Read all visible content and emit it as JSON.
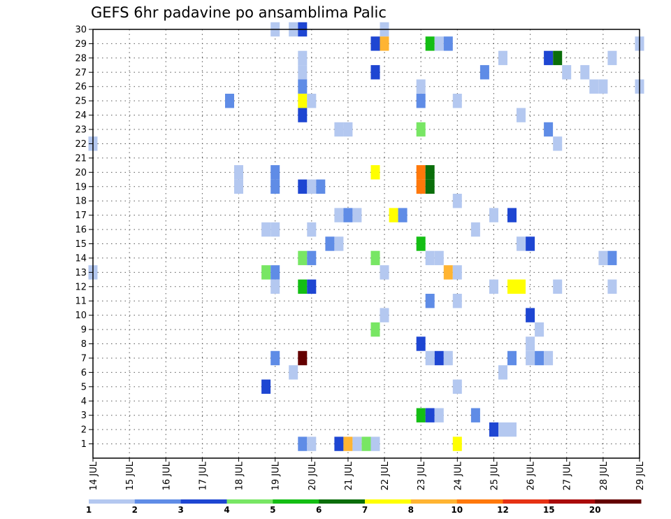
{
  "chart_data": {
    "type": "heatmap",
    "title": "GEFS 6hr padavine po ansamblima Palic",
    "x_tick_labels": [
      "14 JUL",
      "15 JUL",
      "16 JUL",
      "17 JUL",
      "18 JUL",
      "19 JUL",
      "20 JUL",
      "21 JUL",
      "22 JUL",
      "23 JUL",
      "24 JUL",
      "25 JUL",
      "26 JUL",
      "27 JUL",
      "28 JUL",
      "29 JUL"
    ],
    "x_range_days": [
      0,
      15
    ],
    "y_tick_labels": [
      "1",
      "2",
      "3",
      "4",
      "5",
      "6",
      "7",
      "8",
      "9",
      "10",
      "11",
      "12",
      "13",
      "14",
      "15",
      "16",
      "17",
      "18",
      "19",
      "20",
      "21",
      "22",
      "23",
      "24",
      "25",
      "26",
      "27",
      "28",
      "29",
      "30"
    ],
    "y_range": [
      0,
      30
    ],
    "grid": true,
    "grid_style": "dotted",
    "colorbar": {
      "labels": [
        "1",
        "2",
        "3",
        "4",
        "5",
        "6",
        "7",
        "8",
        "10",
        "12",
        "15",
        "20"
      ],
      "colors": [
        "#b4c8f0",
        "#5f8ce6",
        "#1e46d2",
        "#78e664",
        "#14be14",
        "#0a6e0a",
        "#ffff00",
        "#ffb432",
        "#ff780a",
        "#e63214",
        "#aa0a0a",
        "#640000"
      ]
    },
    "cells": [
      {
        "day": 5.0,
        "member": 30,
        "level": 0
      },
      {
        "day": 5.5,
        "member": 30,
        "level": 0
      },
      {
        "day": 5.75,
        "member": 30,
        "level": 2
      },
      {
        "day": 8.0,
        "member": 30,
        "level": 0
      },
      {
        "day": 7.75,
        "member": 29,
        "level": 2
      },
      {
        "day": 8.0,
        "member": 29,
        "level": 7
      },
      {
        "day": 9.25,
        "member": 29,
        "level": 4
      },
      {
        "day": 9.5,
        "member": 29,
        "level": 0
      },
      {
        "day": 9.75,
        "member": 29,
        "level": 1
      },
      {
        "day": 15.0,
        "member": 29,
        "level": 0
      },
      {
        "day": 5.75,
        "member": 28,
        "level": 0
      },
      {
        "day": 11.25,
        "member": 28,
        "level": 0
      },
      {
        "day": 12.5,
        "member": 28,
        "level": 2
      },
      {
        "day": 12.75,
        "member": 28,
        "level": 5
      },
      {
        "day": 14.25,
        "member": 28,
        "level": 0
      },
      {
        "day": 5.75,
        "member": 27,
        "level": 0
      },
      {
        "day": 7.75,
        "member": 27,
        "level": 2
      },
      {
        "day": 10.75,
        "member": 27,
        "level": 1
      },
      {
        "day": 13.0,
        "member": 27,
        "level": 0
      },
      {
        "day": 13.5,
        "member": 27,
        "level": 0
      },
      {
        "day": 5.75,
        "member": 26,
        "level": 1
      },
      {
        "day": 9.0,
        "member": 26,
        "level": 0
      },
      {
        "day": 13.75,
        "member": 26,
        "level": 0
      },
      {
        "day": 14.0,
        "member": 26,
        "level": 0
      },
      {
        "day": 15.0,
        "member": 26,
        "level": 0
      },
      {
        "day": 3.75,
        "member": 25,
        "level": 1
      },
      {
        "day": 5.75,
        "member": 25,
        "level": 6
      },
      {
        "day": 6.0,
        "member": 25,
        "level": 0
      },
      {
        "day": 9.0,
        "member": 25,
        "level": 1
      },
      {
        "day": 10.0,
        "member": 25,
        "level": 0
      },
      {
        "day": 5.75,
        "member": 24,
        "level": 2
      },
      {
        "day": 11.75,
        "member": 24,
        "level": 0
      },
      {
        "day": 6.75,
        "member": 23,
        "level": 0
      },
      {
        "day": 7.0,
        "member": 23,
        "level": 0
      },
      {
        "day": 9.0,
        "member": 23,
        "level": 3
      },
      {
        "day": 12.5,
        "member": 23,
        "level": 1
      },
      {
        "day": 0.0,
        "member": 22,
        "level": 0
      },
      {
        "day": 12.75,
        "member": 22,
        "level": 0
      },
      {
        "day": 4.0,
        "member": 20,
        "level": 0
      },
      {
        "day": 5.0,
        "member": 20,
        "level": 1
      },
      {
        "day": 7.75,
        "member": 20,
        "level": 6
      },
      {
        "day": 9.0,
        "member": 20,
        "level": 8
      },
      {
        "day": 9.25,
        "member": 20,
        "level": 5
      },
      {
        "day": 4.0,
        "member": 19,
        "level": 0
      },
      {
        "day": 5.0,
        "member": 19,
        "level": 1
      },
      {
        "day": 9.0,
        "member": 19,
        "level": 8
      },
      {
        "day": 9.25,
        "member": 19,
        "level": 5
      },
      {
        "day": 5.75,
        "member": 19,
        "level": 2
      },
      {
        "day": 6.0,
        "member": 19,
        "level": 0
      },
      {
        "day": 6.25,
        "member": 19,
        "level": 1
      },
      {
        "day": 10.0,
        "member": 18,
        "level": 0
      },
      {
        "day": 6.75,
        "member": 17,
        "level": 0
      },
      {
        "day": 7.0,
        "member": 17,
        "level": 1
      },
      {
        "day": 7.25,
        "member": 17,
        "level": 0
      },
      {
        "day": 8.25,
        "member": 17,
        "level": 6
      },
      {
        "day": 8.5,
        "member": 17,
        "level": 1
      },
      {
        "day": 11.0,
        "member": 17,
        "level": 0
      },
      {
        "day": 11.5,
        "member": 17,
        "level": 2
      },
      {
        "day": 4.75,
        "member": 16,
        "level": 0
      },
      {
        "day": 5.0,
        "member": 16,
        "level": 0
      },
      {
        "day": 6.0,
        "member": 16,
        "level": 0
      },
      {
        "day": 10.5,
        "member": 16,
        "level": 0
      },
      {
        "day": 6.5,
        "member": 15,
        "level": 1
      },
      {
        "day": 6.75,
        "member": 15,
        "level": 0
      },
      {
        "day": 9.0,
        "member": 15,
        "level": 4
      },
      {
        "day": 11.75,
        "member": 15,
        "level": 0
      },
      {
        "day": 12.0,
        "member": 15,
        "level": 2
      },
      {
        "day": 5.75,
        "member": 14,
        "level": 3
      },
      {
        "day": 6.0,
        "member": 14,
        "level": 1
      },
      {
        "day": 7.75,
        "member": 14,
        "level": 3
      },
      {
        "day": 9.25,
        "member": 14,
        "level": 0
      },
      {
        "day": 9.5,
        "member": 14,
        "level": 0
      },
      {
        "day": 14.0,
        "member": 14,
        "level": 0
      },
      {
        "day": 14.25,
        "member": 14,
        "level": 1
      },
      {
        "day": 0.0,
        "member": 13,
        "level": 0
      },
      {
        "day": 4.75,
        "member": 13,
        "level": 3
      },
      {
        "day": 5.0,
        "member": 13,
        "level": 1
      },
      {
        "day": 8.0,
        "member": 13,
        "level": 0
      },
      {
        "day": 9.75,
        "member": 13,
        "level": 7
      },
      {
        "day": 10.0,
        "member": 13,
        "level": 0
      },
      {
        "day": 5.0,
        "member": 12,
        "level": 0
      },
      {
        "day": 5.75,
        "member": 12,
        "level": 4
      },
      {
        "day": 6.0,
        "member": 12,
        "level": 2
      },
      {
        "day": 11.0,
        "member": 12,
        "level": 0
      },
      {
        "day": 11.5,
        "member": 12,
        "level": 6
      },
      {
        "day": 11.75,
        "member": 12,
        "level": 6
      },
      {
        "day": 12.75,
        "member": 12,
        "level": 0
      },
      {
        "day": 14.25,
        "member": 12,
        "level": 0
      },
      {
        "day": 9.25,
        "member": 11,
        "level": 1
      },
      {
        "day": 10.0,
        "member": 11,
        "level": 0
      },
      {
        "day": 8.0,
        "member": 10,
        "level": 0
      },
      {
        "day": 12.0,
        "member": 10,
        "level": 2
      },
      {
        "day": 7.75,
        "member": 9,
        "level": 3
      },
      {
        "day": 12.25,
        "member": 9,
        "level": 0
      },
      {
        "day": 9.0,
        "member": 8,
        "level": 2
      },
      {
        "day": 12.0,
        "member": 8,
        "level": 0
      },
      {
        "day": 5.0,
        "member": 7,
        "level": 1
      },
      {
        "day": 5.75,
        "member": 7,
        "level": 11
      },
      {
        "day": 9.25,
        "member": 7,
        "level": 0
      },
      {
        "day": 9.5,
        "member": 7,
        "level": 2
      },
      {
        "day": 9.75,
        "member": 7,
        "level": 0
      },
      {
        "day": 11.5,
        "member": 7,
        "level": 1
      },
      {
        "day": 12.0,
        "member": 7,
        "level": 0
      },
      {
        "day": 12.25,
        "member": 7,
        "level": 1
      },
      {
        "day": 12.5,
        "member": 7,
        "level": 0
      },
      {
        "day": 5.5,
        "member": 6,
        "level": 0
      },
      {
        "day": 11.25,
        "member": 6,
        "level": 0
      },
      {
        "day": 4.75,
        "member": 5,
        "level": 2
      },
      {
        "day": 10.0,
        "member": 5,
        "level": 0
      },
      {
        "day": 9.0,
        "member": 3,
        "level": 4
      },
      {
        "day": 9.25,
        "member": 3,
        "level": 2
      },
      {
        "day": 9.5,
        "member": 3,
        "level": 0
      },
      {
        "day": 10.5,
        "member": 3,
        "level": 1
      },
      {
        "day": 11.0,
        "member": 2,
        "level": 2
      },
      {
        "day": 11.25,
        "member": 2,
        "level": 0
      },
      {
        "day": 11.5,
        "member": 2,
        "level": 0
      },
      {
        "day": 5.75,
        "member": 1,
        "level": 1
      },
      {
        "day": 6.0,
        "member": 1,
        "level": 0
      },
      {
        "day": 6.75,
        "member": 1,
        "level": 2
      },
      {
        "day": 7.0,
        "member": 1,
        "level": 7
      },
      {
        "day": 7.25,
        "member": 1,
        "level": 0
      },
      {
        "day": 7.5,
        "member": 1,
        "level": 3
      },
      {
        "day": 7.75,
        "member": 1,
        "level": 0
      },
      {
        "day": 10.0,
        "member": 1,
        "level": 6
      }
    ]
  }
}
